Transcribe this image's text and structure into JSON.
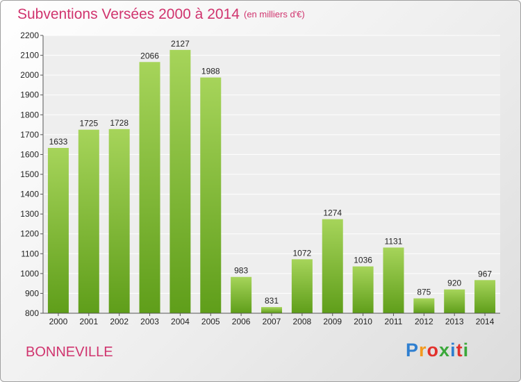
{
  "chart_data": {
    "type": "bar",
    "title": "Subventions Versées 2000 à 2014",
    "subtitle": "(en milliers d'€)",
    "categories": [
      "2000",
      "2001",
      "2002",
      "2003",
      "2004",
      "2005",
      "2006",
      "2007",
      "2008",
      "2009",
      "2010",
      "2011",
      "2012",
      "2013",
      "2014"
    ],
    "values": [
      1633,
      1725,
      1728,
      2066,
      2127,
      1988,
      983,
      831,
      1072,
      1274,
      1036,
      1131,
      875,
      920,
      967
    ],
    "ylim": [
      800,
      2200
    ],
    "yticks": [
      800,
      900,
      1000,
      1100,
      1200,
      1300,
      1400,
      1500,
      1600,
      1700,
      1800,
      1900,
      2000,
      2100,
      2200
    ],
    "grid": true,
    "bar_color_top": "#a6d45a",
    "bar_color_bottom": "#5f9e1a"
  },
  "footer": {
    "commune": "BONNEVILLE",
    "logo_letters": [
      "P",
      "r",
      "o",
      "x",
      "i",
      "t",
      "i"
    ],
    "logo_colors": [
      "#2f7fd0",
      "#f39a1f",
      "#e2312c",
      "#3aa83a",
      "#2f7fd0",
      "#e2312c",
      "#3aa83a"
    ]
  }
}
